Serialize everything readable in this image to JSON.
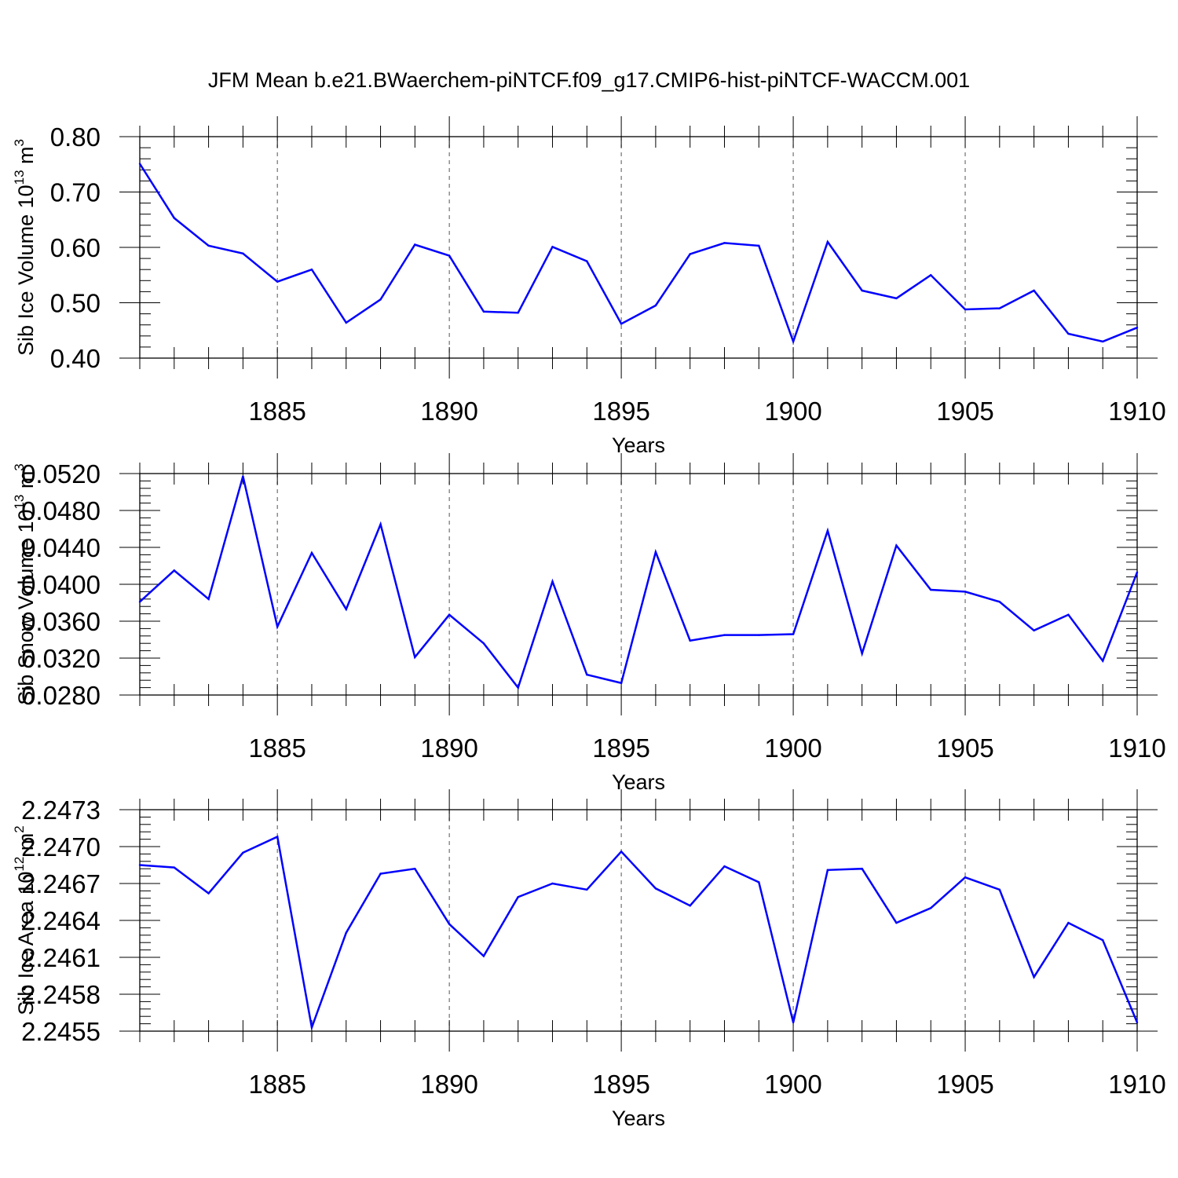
{
  "title": "JFM Mean b.e21.BWaerchem-piNTCF.f09_g17.CMIP6-hist-piNTCF-WACCM.001",
  "chart_data": [
    {
      "type": "line",
      "ylabel": {
        "base": "Sib Ice Volume 10",
        "exp": "13",
        "unit": " m",
        "unit_exp": "3"
      },
      "xlabel": "Years",
      "xlim": [
        1881,
        1910
      ],
      "ylim": [
        0.4,
        0.8
      ],
      "yticks": [
        0.4,
        0.5,
        0.6,
        0.7,
        0.8
      ],
      "ytick_labels": [
        "0.40",
        "0.50",
        "0.60",
        "0.70",
        "0.80"
      ],
      "xticks": [
        1885,
        1890,
        1895,
        1900,
        1905,
        1910
      ],
      "xtick_labels": [
        "1885",
        "1890",
        "1895",
        "1900",
        "1905",
        "1910"
      ],
      "grid": "vertical dashed at major x ticks",
      "color": "#0000ff",
      "x": [
        1881,
        1882,
        1883,
        1884,
        1885,
        1886,
        1887,
        1888,
        1889,
        1890,
        1891,
        1892,
        1893,
        1894,
        1895,
        1896,
        1897,
        1898,
        1899,
        1900,
        1901,
        1902,
        1903,
        1904,
        1905,
        1906,
        1907,
        1908,
        1909,
        1910
      ],
      "values": [
        0.751,
        0.653,
        0.603,
        0.589,
        0.538,
        0.56,
        0.464,
        0.506,
        0.605,
        0.585,
        0.484,
        0.482,
        0.601,
        0.575,
        0.462,
        0.495,
        0.588,
        0.608,
        0.603,
        0.43,
        0.61,
        0.522,
        0.508,
        0.55,
        0.488,
        0.49,
        0.522,
        0.444,
        0.43,
        0.455
      ]
    },
    {
      "type": "line",
      "ylabel": {
        "base": "Sib Snow Volume 10",
        "exp": "13",
        "unit": " m",
        "unit_exp": "3"
      },
      "xlabel": "Years",
      "xlim": [
        1881,
        1910
      ],
      "ylim": [
        0.028,
        0.052
      ],
      "yticks": [
        0.028,
        0.032,
        0.036,
        0.04,
        0.044,
        0.048,
        0.052
      ],
      "ytick_labels": [
        "0.0280",
        "0.0320",
        "0.0360",
        "0.0400",
        "0.0440",
        "0.0480",
        "0.0520"
      ],
      "xticks": [
        1885,
        1890,
        1895,
        1900,
        1905,
        1910
      ],
      "xtick_labels": [
        "1885",
        "1890",
        "1895",
        "1900",
        "1905",
        "1910"
      ],
      "grid": "vertical dashed at major x ticks",
      "color": "#0000ff",
      "x": [
        1881,
        1882,
        1883,
        1884,
        1885,
        1886,
        1887,
        1888,
        1889,
        1890,
        1891,
        1892,
        1893,
        1894,
        1895,
        1896,
        1897,
        1898,
        1899,
        1900,
        1901,
        1902,
        1903,
        1904,
        1905,
        1906,
        1907,
        1908,
        1909,
        1910
      ],
      "values": [
        0.0381,
        0.0415,
        0.0384,
        0.0517,
        0.0354,
        0.0434,
        0.0373,
        0.0465,
        0.0321,
        0.0367,
        0.0336,
        0.0288,
        0.0403,
        0.0302,
        0.0293,
        0.0435,
        0.0339,
        0.0345,
        0.0345,
        0.0346,
        0.0458,
        0.0325,
        0.0442,
        0.0394,
        0.0392,
        0.0381,
        0.035,
        0.0367,
        0.0317,
        0.0413
      ]
    },
    {
      "type": "line",
      "ylabel": {
        "base": "Sib Ice Area 10",
        "exp": "12",
        "unit": " m",
        "unit_exp": "2"
      },
      "xlabel": "Years",
      "xlim": [
        1881,
        1910
      ],
      "ylim": [
        2.2455,
        2.2473
      ],
      "yticks": [
        2.2455,
        2.2458,
        2.2461,
        2.2464,
        2.2467,
        2.247,
        2.2473
      ],
      "ytick_labels": [
        "2.2455",
        "2.2458",
        "2.2461",
        "2.2464",
        "2.2467",
        "2.2470",
        "2.2473"
      ],
      "xticks": [
        1885,
        1890,
        1895,
        1900,
        1905,
        1910
      ],
      "xtick_labels": [
        "1885",
        "1890",
        "1895",
        "1900",
        "1905",
        "1910"
      ],
      "grid": "vertical dashed at major x ticks",
      "color": "#0000ff",
      "x": [
        1881,
        1882,
        1883,
        1884,
        1885,
        1886,
        1887,
        1888,
        1889,
        1890,
        1891,
        1892,
        1893,
        1894,
        1895,
        1896,
        1897,
        1898,
        1899,
        1900,
        1901,
        1902,
        1903,
        1904,
        1905,
        1906,
        1907,
        1908,
        1909,
        1910
      ],
      "values": [
        2.24685,
        2.24683,
        2.24662,
        2.24695,
        2.24708,
        2.24553,
        2.2463,
        2.24678,
        2.24682,
        2.24637,
        2.24611,
        2.24659,
        2.2467,
        2.24665,
        2.24696,
        2.24666,
        2.24652,
        2.24684,
        2.24671,
        2.24557,
        2.24681,
        2.24682,
        2.24638,
        2.2465,
        2.24675,
        2.24665,
        2.24594,
        2.24638,
        2.24624,
        2.24557
      ]
    }
  ]
}
